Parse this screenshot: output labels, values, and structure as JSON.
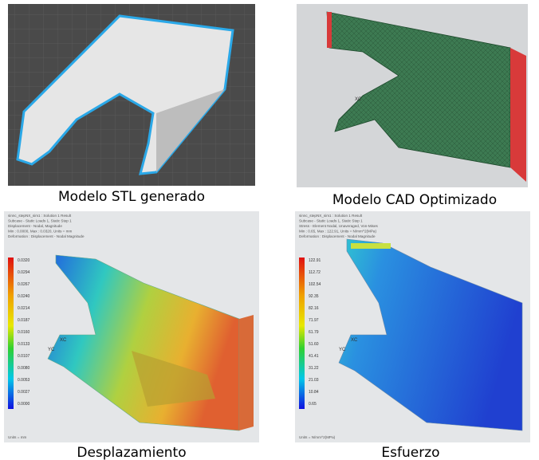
{
  "panels": [
    {
      "caption": "Modelo STL generado"
    },
    {
      "caption": "Modelo CAD Optimizado",
      "axis_labels": [
        "XC"
      ]
    },
    {
      "caption": "Desplazamiento",
      "header": [
        "sinnc_stepNX_sim1 : Solution 1 Result",
        "Subcase - Static Loads 1, Static Step 1",
        "Displacement - Nodal, Magnitude",
        "Min : 0.0000, Max : 0.0320, Units = mm",
        "Deformation : Displacement - Nodal Magnitude"
      ],
      "legend": [
        "0.0320",
        "0.0294",
        "0.0267",
        "0.0240",
        "0.0214",
        "0.0187",
        "0.0160",
        "0.0133",
        "0.0107",
        "0.0080",
        "0.0053",
        "0.0027",
        "0.0000"
      ],
      "units": "Units = mm",
      "axis_labels": [
        "XC",
        "YC"
      ]
    },
    {
      "caption": "Esfuerzo",
      "header": [
        "sinnc_stepNX_sim1 : Solution 1 Result",
        "Subcase - Static Loads 1, Static Step 1",
        "Stress - Element Nodal, Unaveraged, Von-Mises",
        "Min : 0.65, Max : 122.91, Units = N/mm^2(MPa)",
        "Deformation : Displacement - Nodal Magnitude"
      ],
      "legend": [
        "122.91",
        "112.72",
        "102.54",
        "92.35",
        "82.16",
        "71.97",
        "61.79",
        "51.60",
        "41.41",
        "31.22",
        "21.03",
        "10.84",
        "0.65"
      ],
      "units": "Units = N/mm^2(MPa)",
      "axis_labels": [
        "XC",
        "YC"
      ]
    }
  ]
}
